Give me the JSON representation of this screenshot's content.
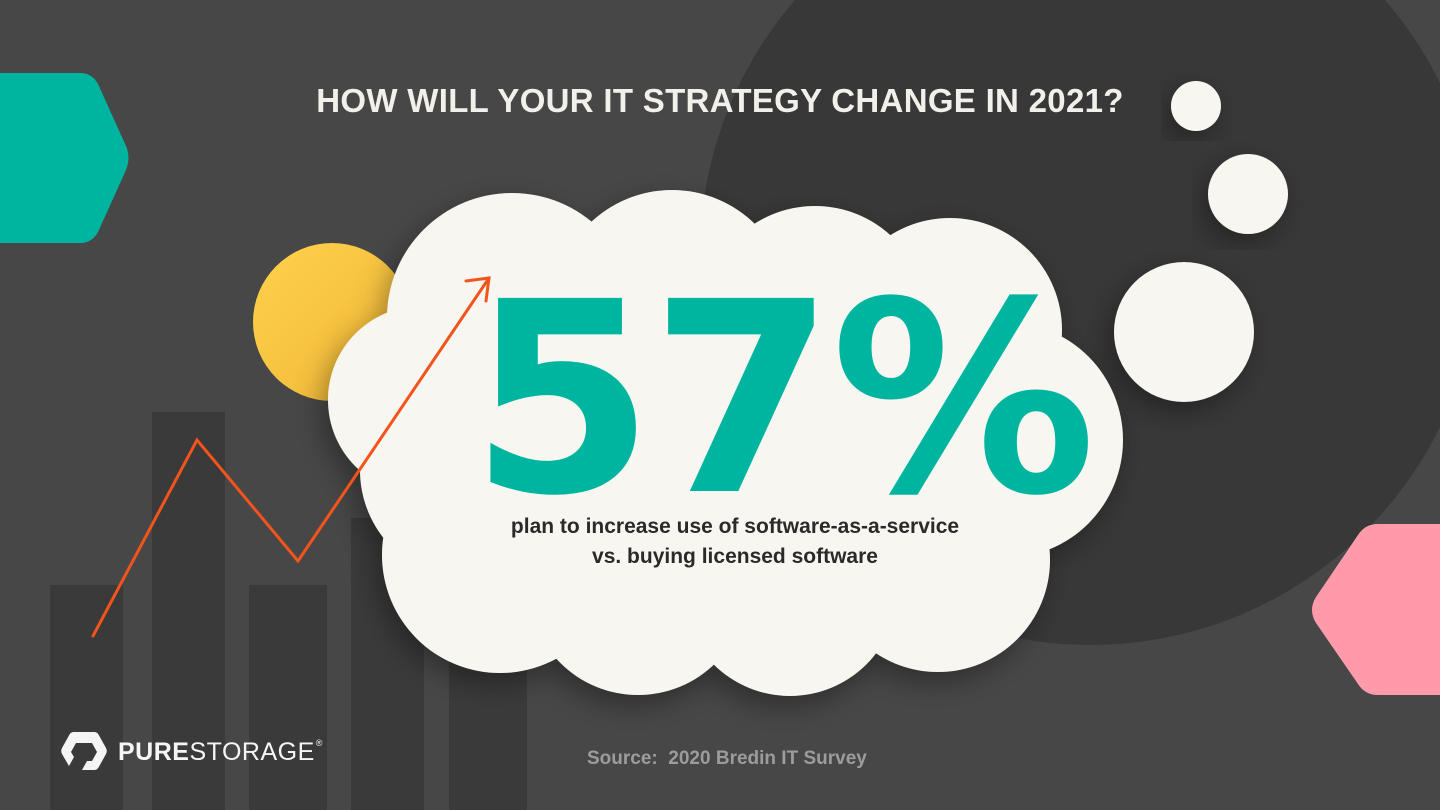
{
  "title": "HOW WILL YOUR IT STRATEGY CHANGE IN 2021?",
  "stat": {
    "value": "57%",
    "caption_line1": "plan to increase use of software-as-a-service",
    "caption_line2": "vs. buying licensed software"
  },
  "source": "Source:  2020 Bredin IT Survey",
  "logo": {
    "name_bold": "PURE",
    "name_regular": "STORAGE",
    "mark": "®"
  },
  "colors": {
    "background": "#474747",
    "teal": "#00b5a0",
    "pink": "#ff9aaa",
    "yellow": "#fdc942",
    "orange_line": "#f2541b",
    "cloud": "#f8f6f0"
  },
  "icons": [
    "trend-line",
    "thought-cloud",
    "pure-storage-logo-icon"
  ]
}
